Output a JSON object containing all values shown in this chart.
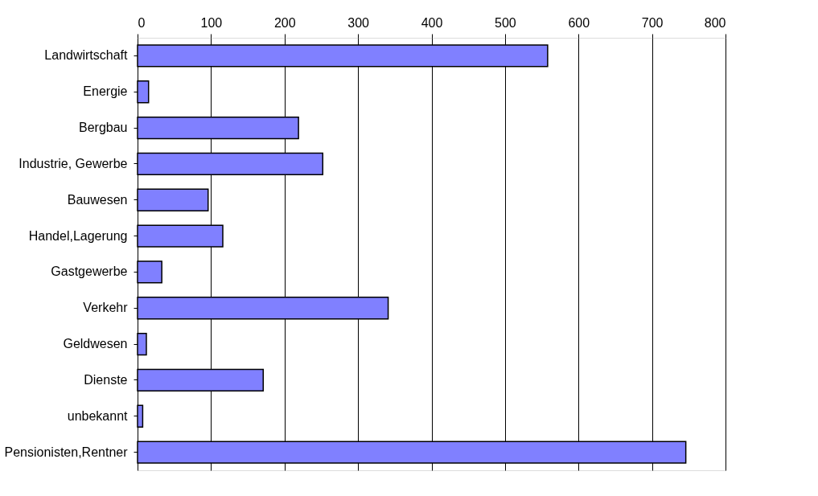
{
  "chart_data": {
    "type": "bar",
    "orientation": "horizontal",
    "categories": [
      "Landwirtschaft",
      "Energie",
      "Bergbau",
      "Industrie, Gewerbe",
      "Bauwesen",
      "Handel,Lagerung",
      "Gastgewerbe",
      "Verkehr",
      "Geldwesen",
      "Dienste",
      "unbekannt",
      "Pensionisten,Rentner"
    ],
    "values": [
      558,
      15,
      219,
      252,
      96,
      116,
      33,
      341,
      12,
      171,
      7,
      746
    ],
    "color": "#8080ff",
    "xlim": [
      0,
      800
    ],
    "xticks": [
      0,
      100,
      200,
      300,
      400,
      500,
      600,
      700,
      800
    ],
    "grid": "x"
  }
}
